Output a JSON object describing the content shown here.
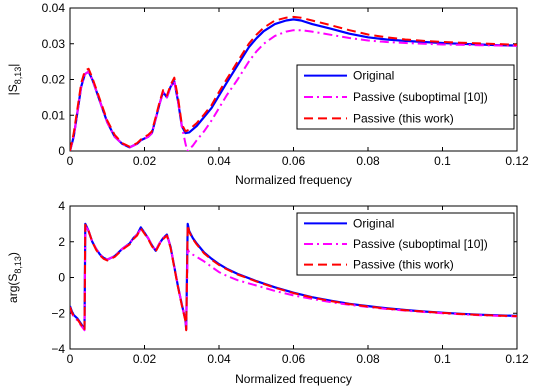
{
  "chart_data": [
    {
      "type": "line",
      "ylabel": "|S",
      "ylabel_sub": "8,13",
      "ylabel_close": "|",
      "xlabel": "Normalized frequency",
      "xlim": [
        0,
        0.12
      ],
      "ylim": [
        0,
        0.04
      ],
      "xticks": [
        0,
        0.02,
        0.04,
        0.06,
        0.08,
        0.1,
        0.12
      ],
      "xtick_labels": [
        "0",
        "0.02",
        "0.04",
        "0.06",
        "0.08",
        "0.1",
        "0.12"
      ],
      "yticks": [
        0,
        0.01,
        0.02,
        0.03,
        0.04
      ],
      "ytick_labels": [
        "0",
        "0.01",
        "0.02",
        "0.03",
        "0.04"
      ],
      "grid": false,
      "legend_position": "right",
      "series": [
        {
          "name": "Original",
          "color": "#0000ff",
          "style": "solid",
          "x": [
            0,
            0.001,
            0.002,
            0.003,
            0.004,
            0.005,
            0.006,
            0.007,
            0.008,
            0.01,
            0.012,
            0.014,
            0.016,
            0.018,
            0.019,
            0.02,
            0.021,
            0.022,
            0.023,
            0.024,
            0.025,
            0.026,
            0.027,
            0.028,
            0.029,
            0.03,
            0.031,
            0.032,
            0.034,
            0.036,
            0.038,
            0.04,
            0.042,
            0.045,
            0.048,
            0.05,
            0.052,
            0.055,
            0.058,
            0.06,
            0.062,
            0.065,
            0.07,
            0.075,
            0.08,
            0.085,
            0.09,
            0.095,
            0.1,
            0.105,
            0.11,
            0.115,
            0.12
          ],
          "y": [
            0,
            0.004,
            0.011,
            0.018,
            0.0215,
            0.0222,
            0.02,
            0.017,
            0.014,
            0.008,
            0.004,
            0.002,
            0.001,
            0.002,
            0.003,
            0.0035,
            0.004,
            0.005,
            0.009,
            0.013,
            0.0165,
            0.015,
            0.018,
            0.0195,
            0.014,
            0.007,
            0.005,
            0.0052,
            0.007,
            0.0095,
            0.012,
            0.0155,
            0.019,
            0.024,
            0.029,
            0.0315,
            0.0335,
            0.0355,
            0.0365,
            0.0368,
            0.0365,
            0.0355,
            0.0342,
            0.0328,
            0.0318,
            0.0312,
            0.0308,
            0.0305,
            0.0302,
            0.03,
            0.0298,
            0.0296,
            0.0295
          ]
        },
        {
          "name": "Passive (suboptimal [10])",
          "color": "#ff00ff",
          "style": "dashdot",
          "x": [
            0,
            0.001,
            0.002,
            0.003,
            0.004,
            0.005,
            0.006,
            0.007,
            0.008,
            0.01,
            0.012,
            0.014,
            0.016,
            0.018,
            0.019,
            0.02,
            0.021,
            0.022,
            0.023,
            0.024,
            0.025,
            0.026,
            0.027,
            0.028,
            0.029,
            0.03,
            0.031,
            0.0315,
            0.032,
            0.033,
            0.034,
            0.036,
            0.038,
            0.04,
            0.042,
            0.045,
            0.048,
            0.05,
            0.052,
            0.055,
            0.058,
            0.06,
            0.062,
            0.065,
            0.07,
            0.075,
            0.08,
            0.085,
            0.09,
            0.095,
            0.1,
            0.105,
            0.11,
            0.115,
            0.12
          ],
          "y": [
            0,
            0.004,
            0.011,
            0.018,
            0.0215,
            0.0222,
            0.02,
            0.017,
            0.014,
            0.008,
            0.004,
            0.002,
            0.001,
            0.002,
            0.003,
            0.0035,
            0.004,
            0.005,
            0.009,
            0.013,
            0.0165,
            0.015,
            0.018,
            0.0195,
            0.014,
            0.007,
            0.002,
            0.0,
            0.0005,
            0.0015,
            0.003,
            0.0055,
            0.0085,
            0.012,
            0.0155,
            0.02,
            0.025,
            0.0278,
            0.03,
            0.0322,
            0.0334,
            0.0338,
            0.0338,
            0.0334,
            0.0325,
            0.0316,
            0.0309,
            0.0305,
            0.0302,
            0.03,
            0.0298,
            0.0297,
            0.0296,
            0.0295,
            0.0294
          ]
        },
        {
          "name": "Passive (this work)",
          "color": "#ff0000",
          "style": "dashed",
          "x": [
            0,
            0.001,
            0.002,
            0.003,
            0.004,
            0.005,
            0.006,
            0.007,
            0.008,
            0.01,
            0.012,
            0.014,
            0.016,
            0.018,
            0.019,
            0.02,
            0.021,
            0.022,
            0.023,
            0.024,
            0.025,
            0.026,
            0.027,
            0.028,
            0.029,
            0.03,
            0.031,
            0.032,
            0.034,
            0.036,
            0.038,
            0.04,
            0.042,
            0.045,
            0.048,
            0.05,
            0.052,
            0.055,
            0.058,
            0.06,
            0.062,
            0.065,
            0.07,
            0.075,
            0.08,
            0.085,
            0.09,
            0.095,
            0.1,
            0.105,
            0.11,
            0.115,
            0.12
          ],
          "y": [
            0,
            0.005,
            0.012,
            0.019,
            0.0225,
            0.023,
            0.0205,
            0.0175,
            0.0145,
            0.0085,
            0.0045,
            0.0022,
            0.0012,
            0.0022,
            0.0032,
            0.004,
            0.0045,
            0.0055,
            0.0095,
            0.0135,
            0.017,
            0.0155,
            0.0185,
            0.0205,
            0.015,
            0.0075,
            0.0055,
            0.006,
            0.0078,
            0.0102,
            0.0128,
            0.0165,
            0.02,
            0.025,
            0.03,
            0.0325,
            0.0345,
            0.0365,
            0.0373,
            0.0375,
            0.0373,
            0.0365,
            0.0352,
            0.0338,
            0.0326,
            0.0318,
            0.0312,
            0.0308,
            0.0305,
            0.0303,
            0.0301,
            0.0299,
            0.0297
          ]
        }
      ]
    },
    {
      "type": "line",
      "ylabel": "arg(S",
      "ylabel_sub": "8,13",
      "ylabel_close": ")",
      "xlabel": "Normalized frequency",
      "xlim": [
        0,
        0.12
      ],
      "ylim": [
        -4,
        4
      ],
      "xticks": [
        0,
        0.02,
        0.04,
        0.06,
        0.08,
        0.1,
        0.12
      ],
      "xtick_labels": [
        "0",
        "0.02",
        "0.04",
        "0.06",
        "0.08",
        "0.1",
        "0.12"
      ],
      "yticks": [
        -4,
        -2,
        0,
        2,
        4
      ],
      "ytick_labels": [
        "−4",
        "−2",
        "0",
        "2",
        "4"
      ],
      "grid": false,
      "legend_position": "top-right",
      "series": [
        {
          "name": "Original",
          "color": "#0000ff",
          "style": "solid",
          "x": [
            0,
            0.0005,
            0.001,
            0.002,
            0.003,
            0.0039,
            0.0041,
            0.005,
            0.006,
            0.007,
            0.008,
            0.009,
            0.01,
            0.012,
            0.014,
            0.016,
            0.017,
            0.018,
            0.019,
            0.02,
            0.021,
            0.022,
            0.023,
            0.024,
            0.025,
            0.026,
            0.027,
            0.028,
            0.029,
            0.03,
            0.031,
            0.0312,
            0.0316,
            0.032,
            0.033,
            0.034,
            0.036,
            0.038,
            0.04,
            0.042,
            0.045,
            0.05,
            0.055,
            0.06,
            0.065,
            0.07,
            0.075,
            0.08,
            0.085,
            0.09,
            0.095,
            0.1,
            0.105,
            0.11,
            0.115,
            0.12
          ],
          "y": [
            -1.6,
            -1.9,
            -2.1,
            -2.3,
            -2.6,
            -2.9,
            3.0,
            2.6,
            2.0,
            1.6,
            1.3,
            1.1,
            1.0,
            1.2,
            1.6,
            1.9,
            2.2,
            2.4,
            2.8,
            2.5,
            2.2,
            1.8,
            1.5,
            1.9,
            2.2,
            2.4,
            1.7,
            0.6,
            -0.5,
            -1.5,
            -2.4,
            -2.9,
            3.0,
            2.6,
            2.2,
            1.9,
            1.4,
            1.05,
            0.75,
            0.5,
            0.2,
            -0.2,
            -0.55,
            -0.85,
            -1.1,
            -1.3,
            -1.47,
            -1.6,
            -1.72,
            -1.82,
            -1.9,
            -1.97,
            -2.03,
            -2.08,
            -2.12,
            -2.15
          ]
        },
        {
          "name": "Passive (suboptimal [10])",
          "color": "#ff00ff",
          "style": "dashdot",
          "x": [
            0,
            0.0005,
            0.001,
            0.002,
            0.003,
            0.0039,
            0.0041,
            0.005,
            0.006,
            0.007,
            0.008,
            0.009,
            0.01,
            0.012,
            0.014,
            0.016,
            0.017,
            0.018,
            0.019,
            0.02,
            0.021,
            0.022,
            0.023,
            0.024,
            0.025,
            0.026,
            0.027,
            0.028,
            0.029,
            0.03,
            0.031,
            0.0312,
            0.0316,
            0.032,
            0.034,
            0.036,
            0.038,
            0.04,
            0.042,
            0.045,
            0.05,
            0.055,
            0.06,
            0.065,
            0.07,
            0.075,
            0.08,
            0.085,
            0.09,
            0.095,
            0.1,
            0.105,
            0.11,
            0.115,
            0.12
          ],
          "y": [
            -1.7,
            -2.0,
            -2.2,
            -2.4,
            -2.7,
            -2.95,
            2.9,
            2.6,
            2.0,
            1.6,
            1.3,
            1.1,
            1.0,
            1.2,
            1.6,
            1.9,
            2.2,
            2.4,
            2.7,
            2.5,
            2.2,
            1.8,
            1.5,
            1.9,
            2.2,
            2.4,
            1.7,
            0.6,
            -0.5,
            -1.5,
            -2.4,
            -2.9,
            1.6,
            1.4,
            1.15,
            0.9,
            0.6,
            0.3,
            0.1,
            -0.15,
            -0.45,
            -0.75,
            -1.0,
            -1.2,
            -1.38,
            -1.53,
            -1.65,
            -1.76,
            -1.85,
            -1.93,
            -2.0,
            -2.06,
            -2.11,
            -2.15,
            -2.18
          ]
        },
        {
          "name": "Passive (this work)",
          "color": "#ff0000",
          "style": "dashed",
          "x": [
            0,
            0.0005,
            0.001,
            0.002,
            0.003,
            0.0039,
            0.0041,
            0.005,
            0.006,
            0.007,
            0.008,
            0.009,
            0.01,
            0.012,
            0.014,
            0.016,
            0.017,
            0.018,
            0.019,
            0.02,
            0.021,
            0.022,
            0.023,
            0.024,
            0.025,
            0.026,
            0.027,
            0.028,
            0.029,
            0.03,
            0.031,
            0.0312,
            0.0316,
            0.032,
            0.033,
            0.034,
            0.036,
            0.038,
            0.04,
            0.042,
            0.045,
            0.05,
            0.055,
            0.06,
            0.065,
            0.07,
            0.075,
            0.08,
            0.085,
            0.09,
            0.095,
            0.1,
            0.105,
            0.11,
            0.115,
            0.12
          ],
          "y": [
            -1.65,
            -1.95,
            -2.15,
            -2.35,
            -2.65,
            -2.95,
            2.95,
            2.6,
            2.0,
            1.55,
            1.25,
            1.05,
            0.95,
            1.15,
            1.55,
            1.85,
            2.15,
            2.35,
            2.75,
            2.45,
            2.15,
            1.75,
            1.45,
            1.85,
            2.15,
            2.35,
            1.65,
            0.55,
            -0.55,
            -1.55,
            -2.45,
            -2.95,
            2.95,
            2.55,
            2.15,
            1.85,
            1.35,
            1.0,
            0.7,
            0.47,
            0.17,
            -0.22,
            -0.57,
            -0.87,
            -1.12,
            -1.32,
            -1.49,
            -1.62,
            -1.74,
            -1.83,
            -1.91,
            -1.98,
            -2.04,
            -2.09,
            -2.13,
            -2.16
          ]
        }
      ]
    }
  ]
}
